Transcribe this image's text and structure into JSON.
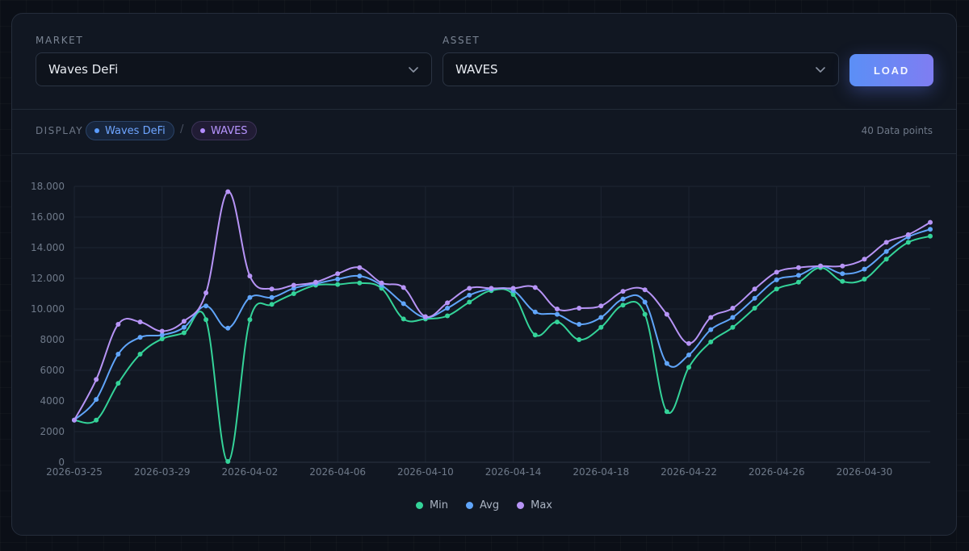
{
  "filters": {
    "market_label": "MARKET",
    "market_value": "Waves DeFi",
    "asset_label": "ASSET",
    "asset_value": "WAVES",
    "load_label": "LOAD"
  },
  "display": {
    "label": "DISPLAY",
    "market_pill": "Waves DeFi",
    "separator": "/",
    "asset_pill": "WAVES",
    "points_text": "40 Data points"
  },
  "colors": {
    "min": "#34d399",
    "avg": "#60a5fa",
    "max": "#b794f6",
    "accent": "#6b86f5"
  },
  "chart_data": {
    "type": "line",
    "title": "",
    "xlabel": "",
    "ylabel": "",
    "ylim": [
      0,
      18000
    ],
    "yticks": [
      0,
      2000,
      4000,
      6000,
      8000,
      10000,
      12000,
      14000,
      16000,
      18000
    ],
    "ytick_labels": [
      "0",
      "2000",
      "4000",
      "6000",
      "8000",
      "10.000",
      "12.000",
      "14.000",
      "16.000",
      "18.000"
    ],
    "xtick_labels": [
      "2026-03-25",
      "2026-03-29",
      "2026-04-02",
      "2026-04-06",
      "2026-04-10",
      "2026-04-14",
      "2026-04-18",
      "2026-04-22",
      "2026-04-26",
      "2026-04-30"
    ],
    "x": [
      "2026-03-25",
      "2026-03-26",
      "2026-03-27",
      "2026-03-28",
      "2026-03-29",
      "2026-03-30",
      "2026-03-31",
      "2026-04-01",
      "2026-04-02",
      "2026-04-03",
      "2026-04-04",
      "2026-04-05",
      "2026-04-06",
      "2026-04-07",
      "2026-04-08",
      "2026-04-09",
      "2026-04-10",
      "2026-04-11",
      "2026-04-12",
      "2026-04-13",
      "2026-04-14",
      "2026-04-15",
      "2026-04-16",
      "2026-04-17",
      "2026-04-18",
      "2026-04-19",
      "2026-04-20",
      "2026-04-21",
      "2026-04-22",
      "2026-04-23",
      "2026-04-24",
      "2026-04-25",
      "2026-04-26",
      "2026-04-27",
      "2026-04-28",
      "2026-04-29",
      "2026-04-30",
      "2026-05-01",
      "2026-05-02",
      "2026-05-03"
    ],
    "grid": true,
    "legend": "bottom-center",
    "series": [
      {
        "name": "Min",
        "values": [
          2750,
          2750,
          5150,
          7050,
          8050,
          8450,
          9300,
          50,
          9300,
          10300,
          11000,
          11550,
          11600,
          11700,
          11350,
          9350,
          9350,
          9550,
          10450,
          11200,
          10950,
          8300,
          9150,
          8000,
          8800,
          10250,
          9650,
          3300,
          6200,
          7850,
          8800,
          10050,
          11300,
          11750,
          12700,
          11800,
          11950,
          13250,
          14350,
          14750
        ]
      },
      {
        "name": "Avg",
        "values": [
          2750,
          4100,
          7050,
          8150,
          8300,
          8800,
          10200,
          8750,
          10750,
          10750,
          11350,
          11650,
          11950,
          12150,
          11550,
          10350,
          9450,
          10050,
          10900,
          11300,
          11200,
          9800,
          9650,
          9000,
          9450,
          10650,
          10450,
          6450,
          7000,
          8650,
          9450,
          10700,
          11900,
          12200,
          12800,
          12300,
          12600,
          13750,
          14700,
          15200
        ]
      },
      {
        "name": "Max",
        "values": [
          2750,
          5400,
          9000,
          9150,
          8550,
          9200,
          11050,
          17650,
          12150,
          11300,
          11550,
          11750,
          12300,
          12700,
          11700,
          11400,
          9500,
          10400,
          11350,
          11350,
          11350,
          11400,
          10000,
          10050,
          10200,
          11150,
          11250,
          9650,
          7750,
          9450,
          10050,
          11300,
          12400,
          12700,
          12800,
          12800,
          13250,
          14350,
          14850,
          15650
        ]
      }
    ]
  }
}
